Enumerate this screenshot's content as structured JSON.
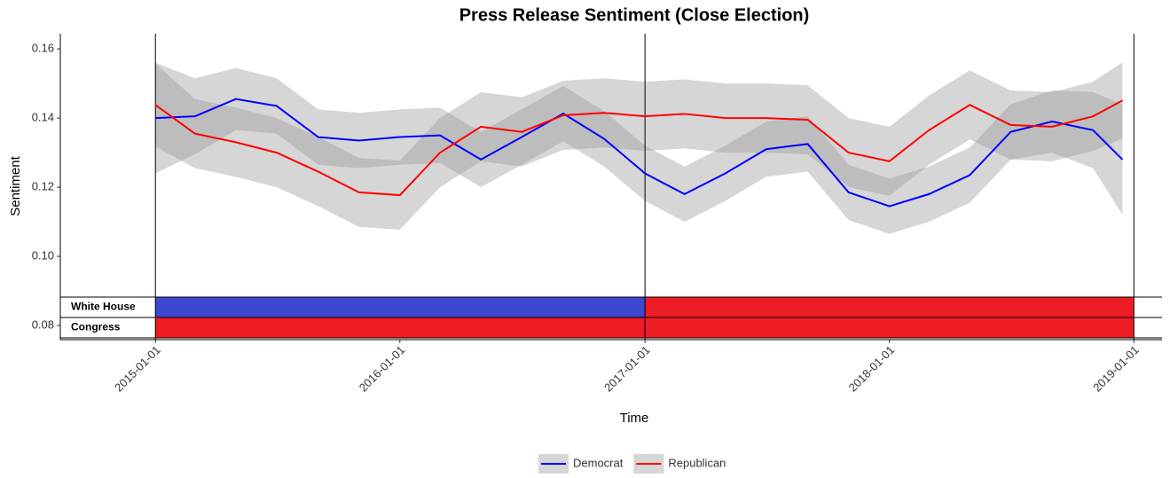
{
  "chart_data": {
    "type": "line",
    "title": "Press Release Sentiment (Close Election)",
    "x_label": "Time",
    "y_label": "Sentiment",
    "x": [
      "2015-01-01",
      "2015-03-01",
      "2015-05-01",
      "2015-07-01",
      "2015-09-01",
      "2015-11-01",
      "2016-01-01",
      "2016-03-01",
      "2016-05-01",
      "2016-07-01",
      "2016-09-01",
      "2016-11-01",
      "2017-01-01",
      "2017-03-01",
      "2017-05-01",
      "2017-07-01",
      "2017-09-01",
      "2017-11-01",
      "2018-01-01",
      "2018-03-01",
      "2018-05-01",
      "2018-07-01",
      "2018-09-01",
      "2018-11-01",
      "2018-12-15"
    ],
    "series": [
      {
        "name": "Democrat",
        "color": "#0000ff",
        "values": [
          0.14,
          0.1405,
          0.1455,
          0.1435,
          0.1345,
          0.1335,
          0.1345,
          0.135,
          0.128,
          0.1345,
          0.1413,
          0.134,
          0.124,
          0.118,
          0.124,
          0.131,
          0.1325,
          0.1185,
          0.1145,
          0.118,
          0.1235,
          0.136,
          0.139,
          0.1365,
          0.128
        ],
        "lower": [
          0.124,
          0.1295,
          0.1365,
          0.1355,
          0.1265,
          0.1255,
          0.1265,
          0.127,
          0.12,
          0.1265,
          0.1333,
          0.126,
          0.116,
          0.11,
          0.116,
          0.123,
          0.1245,
          0.1105,
          0.1065,
          0.11,
          0.1155,
          0.128,
          0.13,
          0.1255,
          0.112
        ],
        "upper": [
          0.156,
          0.1515,
          0.1545,
          0.1515,
          0.1425,
          0.1415,
          0.1425,
          0.143,
          0.136,
          0.1425,
          0.1493,
          0.142,
          0.132,
          0.126,
          0.132,
          0.139,
          0.1405,
          0.1265,
          0.1225,
          0.126,
          0.1315,
          0.144,
          0.148,
          0.1475,
          0.144
        ]
      },
      {
        "name": "Republican",
        "color": "#ff0000",
        "values": [
          0.1438,
          0.1355,
          0.133,
          0.13,
          0.1245,
          0.1185,
          0.1177,
          0.13,
          0.1375,
          0.136,
          0.1408,
          0.1415,
          0.1405,
          0.1412,
          0.14,
          0.14,
          0.1395,
          0.13,
          0.1275,
          0.1365,
          0.1438,
          0.138,
          0.1375,
          0.1405,
          0.1451
        ],
        "lower": [
          0.1318,
          0.1255,
          0.123,
          0.12,
          0.1145,
          0.1085,
          0.1077,
          0.12,
          0.1275,
          0.126,
          0.1308,
          0.1315,
          0.1305,
          0.1312,
          0.13,
          0.13,
          0.1295,
          0.12,
          0.1175,
          0.1265,
          0.1338,
          0.128,
          0.1275,
          0.1305,
          0.1341
        ],
        "upper": [
          0.1558,
          0.1455,
          0.143,
          0.14,
          0.1345,
          0.1285,
          0.1277,
          0.14,
          0.1475,
          0.146,
          0.1508,
          0.1515,
          0.1505,
          0.1512,
          0.15,
          0.15,
          0.1495,
          0.14,
          0.1375,
          0.1465,
          0.1538,
          0.148,
          0.1475,
          0.1505,
          0.1561
        ]
      }
    ],
    "band_color": "#999999",
    "xlim": [
      "2014-08-12",
      "2019-02-12"
    ],
    "xticks": [
      "2015-01-01",
      "2016-01-01",
      "2017-01-01",
      "2018-01-01",
      "2019-01-01"
    ],
    "ylim": [
      0.0759,
      0.1644
    ],
    "yticks": [
      0.08,
      {
        "value": 0.1,
        "label": "0.10"
      },
      0.12,
      0.14,
      0.16
    ],
    "vlines": [
      "2015-01-01",
      "2017-01-01",
      "2019-01-01"
    ],
    "periods": [
      {
        "label": "White House",
        "segments": [
          {
            "start": "2015-01-01",
            "end": "2017-01-01",
            "color": "#3c48cf"
          },
          {
            "start": "2017-01-01",
            "end": "2019-01-01",
            "color": "#ee1c25"
          }
        ]
      },
      {
        "label": "Congress",
        "segments": [
          {
            "start": "2015-01-01",
            "end": "2019-01-01",
            "color": "#ee1c25"
          }
        ]
      }
    ],
    "legend": "bottom"
  }
}
